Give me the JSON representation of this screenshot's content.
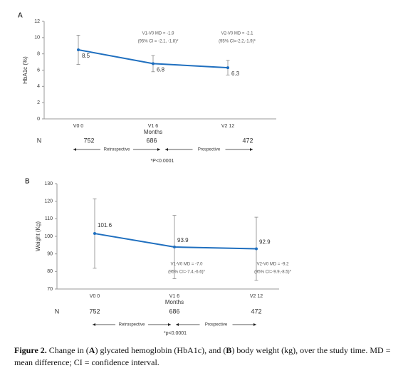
{
  "chart_data": [
    {
      "type": "line",
      "panel": "A",
      "ylabel": "HbA1c (%)",
      "xlabel": "Months",
      "categories": [
        "V0 0",
        "V1 6",
        "V2 12"
      ],
      "values": [
        8.5,
        6.8,
        6.3
      ],
      "errors": [
        1.8,
        1.0,
        0.9
      ],
      "color": "#1f6fbf",
      "ylim": [
        0,
        12
      ],
      "yticks": [
        0,
        2,
        4,
        6,
        8,
        10,
        12
      ],
      "annotations": [
        [
          "V1-V0 MD = -1.9",
          "(95% CI = -2.1, -1.8)*"
        ],
        [
          "V2-V0 MD = -2.1",
          "(95% CI=-2.2,-1.9)*"
        ]
      ],
      "n_label": "N",
      "n_values": [
        752,
        686,
        472
      ],
      "periods": [
        "Retrospective",
        "Prospective"
      ],
      "footnote": "*P<0.0001"
    },
    {
      "type": "line",
      "panel": "B",
      "ylabel": "Weight (Kg)",
      "xlabel": "Months",
      "categories": [
        "V0 0",
        "V1 6",
        "V2 12"
      ],
      "values": [
        101.6,
        93.9,
        92.9
      ],
      "errors": [
        19.8,
        18,
        18
      ],
      "color": "#1f6fbf",
      "ylim": [
        70,
        130
      ],
      "yticks": [
        70,
        80,
        90,
        100,
        110,
        120,
        130
      ],
      "annotations": [
        [
          "V1-V0 MD = -7.0",
          "(95% CI=-7.4,-6.6)*"
        ],
        [
          "V2-V0 MD = -9.2",
          "(95% CI=-9.9,-8.5)*"
        ]
      ],
      "n_label": "N",
      "n_values": [
        752,
        686,
        472
      ],
      "periods": [
        "Retrospective",
        "Prospective"
      ],
      "footnote": "*p<0.0001"
    }
  ],
  "caption": [
    {
      "text": "Figure 2.",
      "bold": true
    },
    {
      "text": " Change in (",
      "bold": false
    },
    {
      "text": "A",
      "bold": true
    },
    {
      "text": ") glycated hemoglobin (HbA1c), and (",
      "bold": false
    },
    {
      "text": "B",
      "bold": true
    },
    {
      "text": ") body weight (kg), over the study time. MD = mean difference; CI = confidence interval.",
      "bold": false
    }
  ]
}
